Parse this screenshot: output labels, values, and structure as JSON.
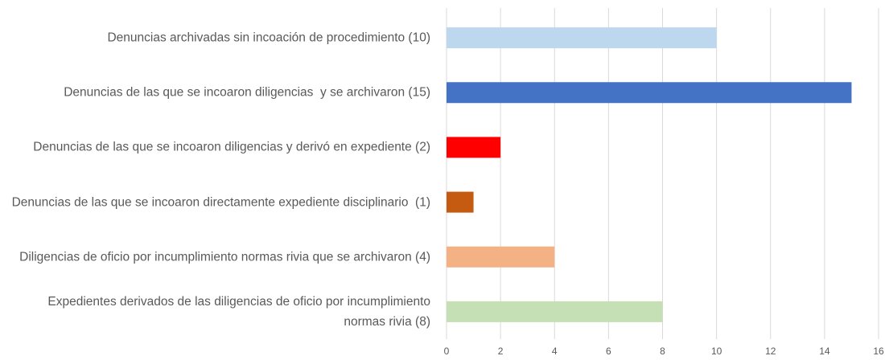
{
  "chart_data": {
    "type": "bar",
    "orientation": "horizontal",
    "categories": [
      "Denuncias archivadas sin incoación de procedimiento (10)",
      "Denuncias de las que se incoaron diligencias  y se archivaron (15)",
      "Denuncias de las que se incoaron diligencias y derivó en expediente (2)",
      "Denuncias de las que se incoaron directamente expediente disciplinario  (1)",
      "Diligencias de oficio por incumplimiento normas rivia que se archivaron (4)",
      "Expedientes derivados de las diligencias de oficio por incumplimiento normas rivia (8)"
    ],
    "values": [
      10,
      15,
      2,
      1,
      4,
      8
    ],
    "colors": [
      "#bdd7ee",
      "#4472c4",
      "#ff0000",
      "#c55a11",
      "#f4b183",
      "#c5e0b4"
    ],
    "xlim": [
      0,
      16
    ],
    "xticks": [
      0,
      2,
      4,
      6,
      8,
      10,
      12,
      14,
      16
    ],
    "grid": true
  }
}
